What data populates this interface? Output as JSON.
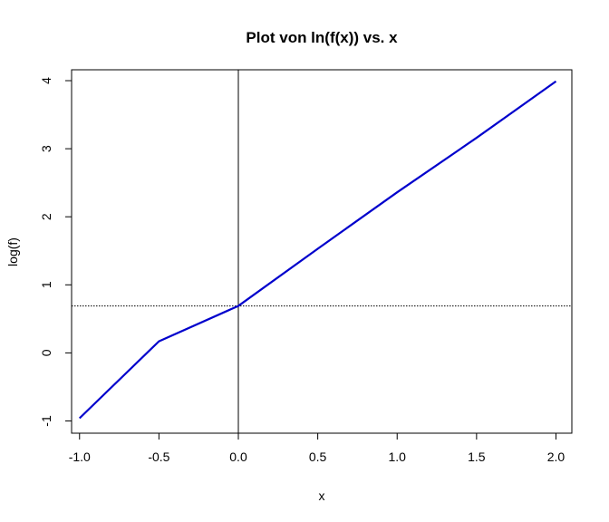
{
  "chart_data": {
    "type": "line",
    "title": "Plot von ln(f(x)) vs. x",
    "xlabel": "x",
    "ylabel": "log(f)",
    "xlim": [
      -1.05,
      2.1
    ],
    "ylim": [
      -1.18,
      4.16
    ],
    "x_ticks": [
      -1.0,
      -0.5,
      0.0,
      0.5,
      1.0,
      1.5,
      2.0
    ],
    "x_tick_labels": [
      "-1.0",
      "-0.5",
      "0.0",
      "0.5",
      "1.0",
      "1.5",
      "2.0"
    ],
    "y_ticks": [
      -1,
      0,
      1,
      2,
      3,
      4
    ],
    "y_tick_labels": [
      "-1",
      "0",
      "1",
      "2",
      "3",
      "4"
    ],
    "grid": false,
    "series": [
      {
        "color": "#0000cc",
        "x": [
          -1.0,
          -0.5,
          0.0,
          0.5,
          1.0,
          1.5,
          2.0
        ],
        "y": [
          -0.96,
          0.17,
          0.69,
          1.53,
          2.36,
          3.16,
          3.99
        ]
      }
    ],
    "reference_lines": [
      {
        "orientation": "vertical",
        "value": 0,
        "style": "solid",
        "color": "#000000"
      },
      {
        "orientation": "horizontal",
        "value": 0.69,
        "style": "dotted",
        "color": "#000000"
      }
    ]
  }
}
